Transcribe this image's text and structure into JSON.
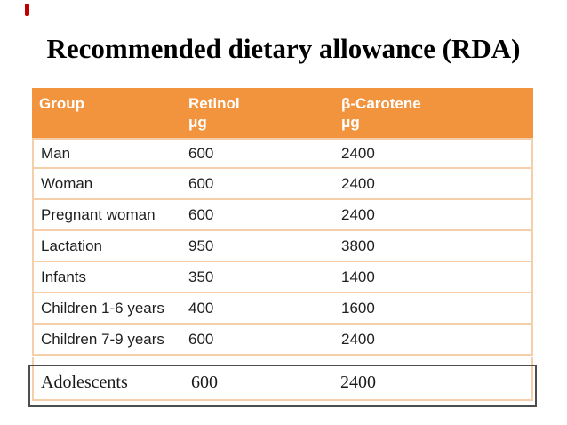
{
  "slide": {
    "title": "Recommended dietary allowance (RDA)"
  },
  "table": {
    "columns": [
      {
        "label": "Group",
        "unit": ""
      },
      {
        "label": "Retinol",
        "unit": "μg"
      },
      {
        "label": "β-Carotene",
        "unit": "μg"
      }
    ],
    "rows": [
      {
        "group": "Man",
        "retinol": "600",
        "carotene": "2400"
      },
      {
        "group": "Woman",
        "retinol": "600",
        "carotene": "2400"
      },
      {
        "group": "Pregnant woman",
        "retinol": "600",
        "carotene": "2400"
      },
      {
        "group": "Lactation",
        "retinol": "950",
        "carotene": "3800"
      },
      {
        "group": "Infants",
        "retinol": "350",
        "carotene": "1400"
      },
      {
        "group": "Children 1-6 years",
        "retinol": "400",
        "carotene": "1600"
      },
      {
        "group": "Children 7-9 years",
        "retinol": "600",
        "carotene": "2400"
      }
    ],
    "highlight_row": {
      "group": "Adolescents",
      "retinol": "600",
      "carotene": "2400"
    }
  },
  "colors": {
    "header_bg": "#f2943e",
    "row_border": "#f5cfa9",
    "highlight_box_border": "#4d4d4d",
    "red_mark": "#c00000",
    "title_text": "#000000",
    "header_text": "#ffffff",
    "body_text": "#1f1f1f"
  },
  "chart_data": {
    "type": "table",
    "title": "Recommended dietary allowance (RDA)",
    "columns": [
      "Group",
      "Retinol μg",
      "β-Carotene μg"
    ],
    "rows": [
      [
        "Man",
        600,
        2400
      ],
      [
        "Woman",
        600,
        2400
      ],
      [
        "Pregnant woman",
        600,
        2400
      ],
      [
        "Lactation",
        950,
        3800
      ],
      [
        "Infants",
        350,
        1400
      ],
      [
        "Children 1-6 years",
        400,
        1600
      ],
      [
        "Children 7-9 years",
        600,
        2400
      ],
      [
        "Adolescents",
        600,
        2400
      ]
    ]
  }
}
